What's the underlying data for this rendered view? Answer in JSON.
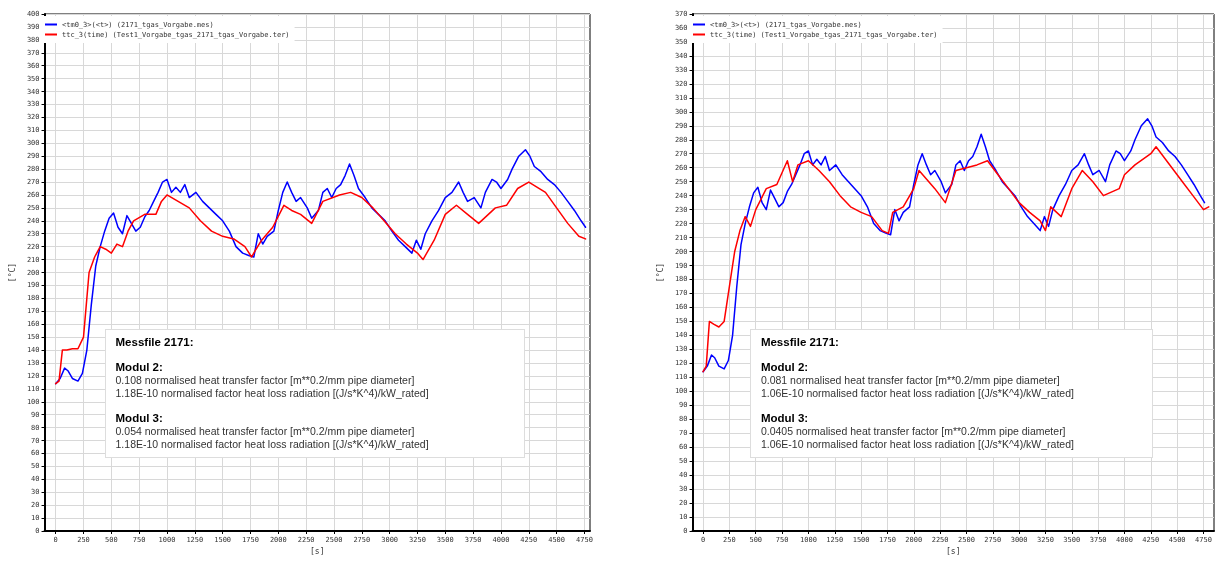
{
  "chart_data": [
    {
      "type": "line",
      "xlabel": "[s]",
      "ylabel": "[°C]",
      "xlim": [
        -100,
        4800
      ],
      "xticks": [
        0,
        250,
        500,
        750,
        1000,
        1250,
        1500,
        1750,
        2000,
        2250,
        2500,
        2750,
        3000,
        3250,
        3500,
        3750,
        4000,
        4250,
        4500,
        4750
      ],
      "ylim": [
        0,
        400
      ],
      "yticks": [
        0,
        10,
        20,
        30,
        40,
        50,
        60,
        70,
        80,
        90,
        100,
        110,
        120,
        130,
        140,
        150,
        160,
        170,
        180,
        190,
        200,
        210,
        220,
        230,
        240,
        250,
        260,
        270,
        280,
        290,
        300,
        310,
        320,
        330,
        340,
        350,
        360,
        370,
        380,
        390,
        400
      ],
      "grid": true,
      "legend": "top left",
      "marker": "none",
      "line_style": "solid",
      "annotations": [
        "Messfile 2171:",
        "Modul 2:",
        "0.108 normalised heat transfer factor [m**0.2/mm pipe diameter]",
        "1.18E-10 normalised factor heat loss radiation [(J/s*K^4)/kW_rated]",
        "Modul 3:",
        "0.054 normalised heat transfer factor [m**0.2/mm pipe diameter]",
        "1.18E-10 normalised factor heat loss radiation [(J/s*K^4)/kW_rated]"
      ],
      "series": [
        {
          "name": "<tm0_3>(<t>) (2171_tgas_Vorgabe.mes)",
          "color": "#0000ff",
          "x": [
            0,
            40,
            80,
            110,
            150,
            200,
            240,
            280,
            320,
            360,
            400,
            440,
            480,
            520,
            560,
            600,
            640,
            680,
            720,
            760,
            800,
            840,
            880,
            920,
            960,
            1000,
            1040,
            1080,
            1120,
            1160,
            1200,
            1260,
            1320,
            1380,
            1440,
            1500,
            1560,
            1620,
            1680,
            1740,
            1780,
            1820,
            1860,
            1900,
            1960,
            2000,
            2040,
            2080,
            2120,
            2160,
            2200,
            2260,
            2300,
            2360,
            2400,
            2440,
            2480,
            2520,
            2560,
            2600,
            2640,
            2680,
            2720,
            2780,
            2840,
            2900,
            2960,
            3020,
            3080,
            3140,
            3200,
            3240,
            3280,
            3320,
            3380,
            3440,
            3500,
            3560,
            3620,
            3660,
            3700,
            3760,
            3820,
            3860,
            3920,
            3960,
            4000,
            4060,
            4100,
            4160,
            4220,
            4260,
            4300,
            4360,
            4420,
            4480,
            4540,
            4600,
            4660,
            4720,
            4760
          ],
          "values": [
            114,
            118,
            126,
            124,
            118,
            116,
            122,
            140,
            175,
            205,
            220,
            232,
            242,
            246,
            235,
            230,
            244,
            238,
            232,
            235,
            243,
            248,
            255,
            262,
            270,
            272,
            262,
            266,
            262,
            268,
            258,
            262,
            255,
            250,
            245,
            240,
            232,
            220,
            215,
            213,
            212,
            230,
            222,
            228,
            232,
            248,
            262,
            270,
            262,
            255,
            258,
            250,
            242,
            248,
            262,
            265,
            258,
            265,
            268,
            275,
            284,
            275,
            265,
            258,
            250,
            245,
            240,
            232,
            225,
            220,
            215,
            225,
            218,
            230,
            240,
            248,
            258,
            262,
            270,
            262,
            255,
            258,
            250,
            262,
            272,
            270,
            265,
            272,
            280,
            290,
            295,
            290,
            282,
            278,
            272,
            268,
            262,
            255,
            248,
            240,
            235
          ]
        },
        {
          "name": "ttc_3(time) (Test1_Vorgabe_tgas_2171_tgas_Vorgabe.ter)",
          "color": "#ff0000",
          "x": [
            0,
            30,
            60,
            100,
            150,
            200,
            250,
            300,
            350,
            400,
            450,
            500,
            550,
            600,
            650,
            700,
            800,
            900,
            950,
            1000,
            1100,
            1200,
            1300,
            1400,
            1500,
            1600,
            1700,
            1760,
            1800,
            1850,
            1950,
            2050,
            2120,
            2200,
            2300,
            2400,
            2550,
            2650,
            2750,
            2850,
            2950,
            3050,
            3150,
            3250,
            3300,
            3400,
            3500,
            3600,
            3700,
            3800,
            3950,
            4050,
            4150,
            4250,
            4400,
            4500,
            4600,
            4700,
            4760
          ],
          "values": [
            114,
            116,
            140,
            140,
            141,
            141,
            150,
            200,
            212,
            220,
            218,
            215,
            222,
            220,
            232,
            240,
            245,
            245,
            255,
            260,
            255,
            250,
            240,
            232,
            228,
            226,
            220,
            212,
            218,
            225,
            235,
            252,
            248,
            245,
            238,
            255,
            260,
            262,
            258,
            250,
            240,
            230,
            222,
            215,
            210,
            225,
            245,
            252,
            245,
            238,
            250,
            252,
            265,
            270,
            262,
            250,
            238,
            228,
            226
          ]
        }
      ]
    },
    {
      "type": "line",
      "xlabel": "[s]",
      "ylabel": "[°C]",
      "xlim": [
        -100,
        4850
      ],
      "xticks": [
        0,
        250,
        500,
        750,
        1000,
        1250,
        1500,
        1750,
        2000,
        2250,
        2500,
        2750,
        3000,
        3250,
        3500,
        3750,
        4000,
        4250,
        4500,
        4750
      ],
      "ylim": [
        0,
        370
      ],
      "yticks": [
        0,
        10,
        20,
        30,
        40,
        50,
        60,
        70,
        80,
        90,
        100,
        110,
        120,
        130,
        140,
        150,
        160,
        170,
        180,
        190,
        200,
        210,
        220,
        230,
        240,
        250,
        260,
        270,
        280,
        290,
        300,
        310,
        320,
        330,
        340,
        350,
        360,
        370
      ],
      "grid": true,
      "legend": "top left",
      "marker": "none",
      "line_style": "solid",
      "annotations": [
        "Messfile 2171:",
        "Modul 2:",
        "0.081 normalised heat transfer factor [m**0.2/mm pipe diameter]",
        "1.06E-10 normalised factor heat loss radiation [(J/s*K^4)/kW_rated]",
        "Modul 3:",
        "0.0405 normalised heat transfer factor [m**0.2/mm pipe diameter]",
        "1.06E-10 normalised factor heat loss radiation [(J/s*K^4)/kW_rated]"
      ],
      "series": [
        {
          "name": "<tm0_3>(<t>) (2171_tgas_Vorgabe.mes)",
          "color": "#0000ff",
          "x": [
            0,
            40,
            80,
            110,
            150,
            200,
            240,
            280,
            320,
            360,
            400,
            440,
            480,
            520,
            560,
            600,
            640,
            680,
            720,
            760,
            800,
            840,
            880,
            920,
            960,
            1000,
            1040,
            1080,
            1120,
            1160,
            1200,
            1260,
            1320,
            1380,
            1440,
            1500,
            1560,
            1620,
            1680,
            1740,
            1780,
            1820,
            1860,
            1900,
            1960,
            2000,
            2040,
            2080,
            2120,
            2160,
            2200,
            2260,
            2300,
            2360,
            2400,
            2440,
            2480,
            2520,
            2560,
            2600,
            2640,
            2680,
            2720,
            2780,
            2840,
            2900,
            2960,
            3020,
            3080,
            3140,
            3200,
            3240,
            3280,
            3320,
            3380,
            3440,
            3500,
            3560,
            3620,
            3660,
            3700,
            3760,
            3820,
            3860,
            3920,
            3960,
            4000,
            4060,
            4100,
            4160,
            4220,
            4260,
            4300,
            4360,
            4420,
            4480,
            4540,
            4600,
            4660,
            4720,
            4760
          ],
          "values": [
            114,
            118,
            126,
            124,
            118,
            116,
            122,
            140,
            175,
            205,
            220,
            232,
            242,
            246,
            235,
            230,
            244,
            238,
            232,
            235,
            243,
            248,
            255,
            262,
            270,
            272,
            262,
            266,
            262,
            268,
            258,
            262,
            255,
            250,
            245,
            240,
            232,
            220,
            215,
            213,
            212,
            230,
            222,
            228,
            232,
            248,
            262,
            270,
            262,
            255,
            258,
            250,
            242,
            248,
            262,
            265,
            258,
            265,
            268,
            275,
            284,
            275,
            265,
            258,
            250,
            245,
            240,
            232,
            225,
            220,
            215,
            225,
            218,
            230,
            240,
            248,
            258,
            262,
            270,
            262,
            255,
            258,
            250,
            262,
            272,
            270,
            265,
            272,
            280,
            290,
            295,
            290,
            282,
            278,
            272,
            268,
            262,
            255,
            248,
            240,
            235
          ]
        },
        {
          "name": "ttc_3(time) (Test1_Vorgabe_tgas_2171_tgas_Vorgabe.ter)",
          "color": "#ff0000",
          "x": [
            0,
            30,
            60,
            100,
            150,
            200,
            250,
            300,
            350,
            400,
            450,
            500,
            600,
            700,
            800,
            850,
            900,
            1000,
            1100,
            1200,
            1300,
            1400,
            1500,
            1600,
            1700,
            1760,
            1800,
            1900,
            2000,
            2050,
            2200,
            2300,
            2400,
            2600,
            2700,
            2800,
            2900,
            3000,
            3100,
            3200,
            3250,
            3300,
            3400,
            3500,
            3600,
            3700,
            3800,
            3950,
            4000,
            4100,
            4250,
            4300,
            4400,
            4550,
            4650,
            4750,
            4800
          ],
          "values": [
            114,
            118,
            150,
            148,
            146,
            150,
            175,
            200,
            215,
            225,
            218,
            230,
            245,
            248,
            265,
            250,
            262,
            265,
            258,
            250,
            240,
            232,
            228,
            225,
            215,
            213,
            228,
            232,
            245,
            258,
            245,
            235,
            258,
            262,
            265,
            255,
            245,
            235,
            228,
            222,
            215,
            232,
            225,
            245,
            258,
            250,
            240,
            245,
            255,
            262,
            270,
            275,
            265,
            250,
            240,
            230,
            232
          ]
        }
      ]
    }
  ]
}
